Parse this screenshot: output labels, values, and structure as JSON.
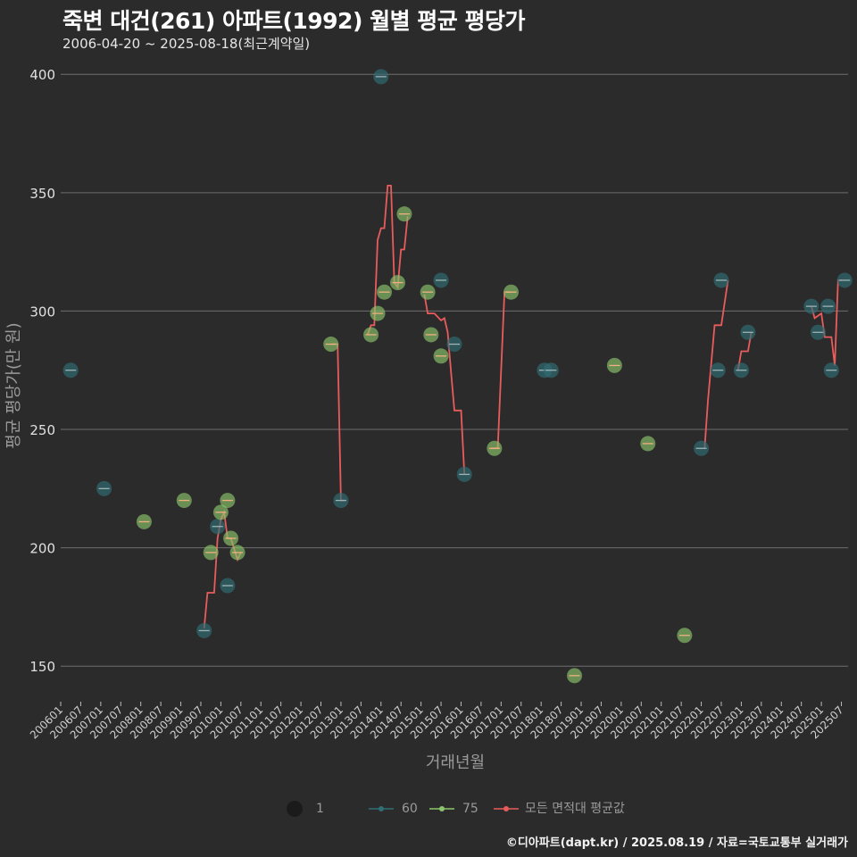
{
  "header": {
    "title": "죽변 대건(261) 아파트(1992) 월별 평균 평당가",
    "subtitle": "2006-04-20 ~ 2025-08-18(최근계약일)"
  },
  "footer": {
    "credit": "©디아파트(dapt.kr) / 2025.08.19 / 자료=국토교통부 실거래가"
  },
  "legend": {
    "size_label": "1",
    "series": [
      {
        "name": "60",
        "color": "#2f6f77"
      },
      {
        "name": "75",
        "color": "#8cc56b"
      },
      {
        "name": "모든 면적대 평균값",
        "color": "#e85c5c"
      }
    ]
  },
  "colors": {
    "background": "#2b2b2c",
    "grid": "#6e6e6e",
    "s60": "#2f6f77",
    "s75": "#8cc56b",
    "avg": "#e85c5c"
  },
  "chart_data": {
    "type": "scatter",
    "title": "죽변 대건(261) 아파트(1992) 월별 평균 평당가",
    "xlabel": "거래년월",
    "ylabel": "평균 평당가(만 원)",
    "ylim": [
      135,
      408
    ],
    "yticks": [
      150,
      200,
      250,
      300,
      350,
      400
    ],
    "xlim": [
      "2006-01",
      "2025-09"
    ],
    "xticks": [
      "200601",
      "200607",
      "200701",
      "200707",
      "200801",
      "200807",
      "200901",
      "200907",
      "201001",
      "201007",
      "201101",
      "201107",
      "201201",
      "201207",
      "201301",
      "201307",
      "201401",
      "201407",
      "201501",
      "201507",
      "201601",
      "201607",
      "201701",
      "201707",
      "201801",
      "201807",
      "201901",
      "201907",
      "202001",
      "202007",
      "202101",
      "202107",
      "202201",
      "202207",
      "202301",
      "202307",
      "202401",
      "202407",
      "202501",
      "202507"
    ],
    "series": [
      {
        "name": "60",
        "points": [
          [
            "2006-04",
            275
          ],
          [
            "2007-02",
            225
          ],
          [
            "2009-08",
            165
          ],
          [
            "2009-12",
            209
          ],
          [
            "2010-03",
            184
          ],
          [
            "2013-01",
            220
          ],
          [
            "2014-01",
            399
          ],
          [
            "2015-07",
            313
          ],
          [
            "2015-11",
            286
          ],
          [
            "2016-02",
            231
          ],
          [
            "2018-02",
            275
          ],
          [
            "2018-04",
            275
          ],
          [
            "2022-01",
            242
          ],
          [
            "2022-06",
            275
          ],
          [
            "2022-07",
            313
          ],
          [
            "2023-01",
            275
          ],
          [
            "2023-03",
            291
          ],
          [
            "2024-10",
            302
          ],
          [
            "2024-12",
            291
          ],
          [
            "2025-03",
            302
          ],
          [
            "2025-04",
            275
          ],
          [
            "2025-08",
            313
          ]
        ]
      },
      {
        "name": "75",
        "points": [
          [
            "2008-02",
            211
          ],
          [
            "2009-02",
            220
          ],
          [
            "2009-10",
            198
          ],
          [
            "2010-01",
            215
          ],
          [
            "2010-03",
            220
          ],
          [
            "2010-04",
            204
          ],
          [
            "2010-06",
            198
          ],
          [
            "2012-10",
            286
          ],
          [
            "2013-10",
            290
          ],
          [
            "2013-12",
            299
          ],
          [
            "2014-02",
            308
          ],
          [
            "2014-06",
            312
          ],
          [
            "2014-08",
            341
          ],
          [
            "2015-03",
            308
          ],
          [
            "2015-04",
            290
          ],
          [
            "2015-07",
            281
          ],
          [
            "2016-11",
            242
          ],
          [
            "2017-04",
            308
          ],
          [
            "2018-11",
            146
          ],
          [
            "2019-11",
            277
          ],
          [
            "2020-09",
            244
          ],
          [
            "2021-08",
            163
          ]
        ]
      },
      {
        "name": "모든 면적대 평균값",
        "segments": [
          [
            [
              "2009-08",
              166
            ],
            [
              "2009-09",
              181
            ],
            [
              "2009-11",
              181
            ],
            [
              "2009-12",
              204
            ],
            [
              "2010-01",
              212
            ],
            [
              "2010-02",
              215
            ],
            [
              "2010-03",
              204
            ],
            [
              "2010-04",
              204
            ],
            [
              "2010-06",
              195
            ],
            [
              "2010-07",
              198
            ]
          ],
          [
            [
              "2012-10",
              286
            ],
            [
              "2012-12",
              286
            ],
            [
              "2013-01",
              220
            ],
            [
              "2013-02",
              220
            ]
          ],
          [
            [
              "2013-09",
              290
            ],
            [
              "2013-10",
              294
            ],
            [
              "2013-11",
              294
            ],
            [
              "2013-12",
              330
            ],
            [
              "2014-01",
              335
            ],
            [
              "2014-02",
              335
            ],
            [
              "2014-03",
              353
            ],
            [
              "2014-04",
              353
            ],
            [
              "2014-05",
              312
            ],
            [
              "2014-06",
              310
            ],
            [
              "2014-07",
              326
            ],
            [
              "2014-08",
              326
            ],
            [
              "2014-09",
              340
            ]
          ],
          [
            [
              "2015-02",
              307
            ],
            [
              "2015-03",
              299
            ],
            [
              "2015-05",
              299
            ],
            [
              "2015-07",
              296
            ],
            [
              "2015-08",
              297
            ],
            [
              "2015-09",
              291
            ],
            [
              "2015-10",
              274
            ],
            [
              "2015-11",
              258
            ],
            [
              "2015-12",
              258
            ],
            [
              "2016-01",
              258
            ],
            [
              "2016-02",
              231
            ]
          ],
          [
            [
              "2016-10",
              242
            ],
            [
              "2016-12",
              242
            ],
            [
              "2017-02",
              308
            ],
            [
              "2017-04",
              308
            ]
          ],
          [
            [
              "2022-02",
              242
            ],
            [
              "2022-03",
              262
            ],
            [
              "2022-05",
              294
            ],
            [
              "2022-07",
              294
            ],
            [
              "2022-09",
              313
            ]
          ],
          [
            [
              "2022-12",
              275
            ],
            [
              "2023-01",
              283
            ],
            [
              "2023-03",
              283
            ],
            [
              "2023-04",
              291
            ]
          ],
          [
            [
              "2024-10",
              302
            ],
            [
              "2024-11",
              297
            ],
            [
              "2025-01",
              299
            ],
            [
              "2025-02",
              289
            ],
            [
              "2025-04",
              289
            ],
            [
              "2025-05",
              277
            ],
            [
              "2025-06",
              313
            ],
            [
              "2025-07",
              313
            ]
          ]
        ]
      }
    ]
  }
}
